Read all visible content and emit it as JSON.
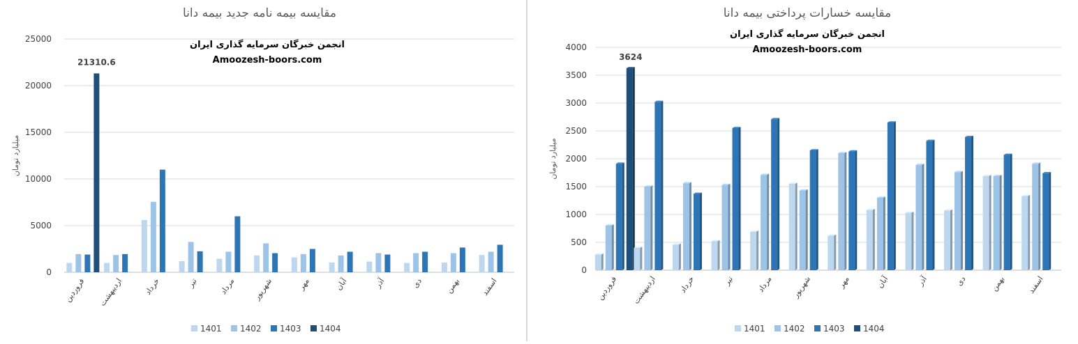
{
  "colors": {
    "s1401": "#bdd7ee",
    "s1402": "#9dc3e6",
    "s1403": "#2e75b6",
    "s1404": "#1f4e79",
    "grid": "#d9d9d9",
    "axis": "#bfbfbf"
  },
  "chart_data": [
    {
      "type": "bar",
      "title": "مقایسه بیمه نامه جدید بیمه دانا",
      "ylabel": "میلیارد تومان",
      "xlabel": "",
      "watermark": [
        "انجمن خبرگان سرمایه گذاری ایران",
        "Amoozesh-boors.com"
      ],
      "ylim": [
        0,
        25000
      ],
      "yticks": [
        "0",
        "5000",
        "10000",
        "15000",
        "20000",
        "25000"
      ],
      "grid": true,
      "legend": "bottom",
      "categories": [
        "فروردین",
        "اردیبهشت",
        "خرداد",
        "تیر",
        "مرداد",
        "شهریور",
        "مهر",
        "آبان",
        "آذر",
        "دی",
        "بهمن",
        "اسفند"
      ],
      "series": [
        {
          "name": "1401",
          "values": [
            1000,
            1000,
            5600,
            1200,
            1450,
            1800,
            1600,
            1050,
            1150,
            1000,
            1050,
            1850
          ]
        },
        {
          "name": "1402",
          "values": [
            1950,
            1850,
            7550,
            3250,
            2200,
            3100,
            1950,
            1800,
            2050,
            2050,
            2050,
            2200
          ]
        },
        {
          "name": "1403",
          "values": [
            1900,
            1950,
            11000,
            2250,
            6000,
            2050,
            2500,
            2200,
            1900,
            2200,
            2650,
            2950
          ]
        },
        {
          "name": "1404",
          "values": [
            21310.6,
            null,
            null,
            null,
            null,
            null,
            null,
            null,
            null,
            null,
            null,
            null
          ]
        }
      ],
      "data_labels": [
        {
          "series": 3,
          "index": 0,
          "text": "21310.6"
        }
      ]
    },
    {
      "type": "bar",
      "title": "مقایسه خسارات پرداختی بیمه دانا",
      "ylabel": "میلیارد تومان",
      "xlabel": "",
      "watermark": [
        "انجمن خبرگان سرمایه گذاری ایران",
        "Amoozesh-boors.com"
      ],
      "ylim": [
        0,
        4000
      ],
      "yticks": [
        "0",
        "500",
        "1000",
        "1500",
        "2000",
        "2500",
        "3000",
        "3500",
        "4000"
      ],
      "grid": true,
      "legend": "bottom",
      "categories": [
        "فروردین",
        "اردیبهشت",
        "خرداد",
        "تیر",
        "مرداد",
        "شهریور",
        "مهر",
        "آبان",
        "آذر",
        "دی",
        "بهمن",
        "اسفند"
      ],
      "series": [
        {
          "name": "1401",
          "values": [
            280,
            400,
            460,
            520,
            690,
            1550,
            620,
            1080,
            1030,
            1070,
            1690,
            1330
          ]
        },
        {
          "name": "1402",
          "values": [
            800,
            1500,
            1560,
            1530,
            1710,
            1430,
            2100,
            1300,
            1890,
            1760,
            1690,
            1910
          ]
        },
        {
          "name": "1403",
          "values": [
            1910,
            3020,
            1370,
            2550,
            2710,
            2150,
            2130,
            2650,
            2320,
            2390,
            2070,
            1740
          ]
        },
        {
          "name": "1404",
          "values": [
            3624,
            null,
            null,
            null,
            null,
            null,
            null,
            null,
            null,
            null,
            null,
            null
          ]
        }
      ],
      "data_labels": [
        {
          "series": 3,
          "index": 0,
          "text": "3624"
        }
      ]
    }
  ]
}
